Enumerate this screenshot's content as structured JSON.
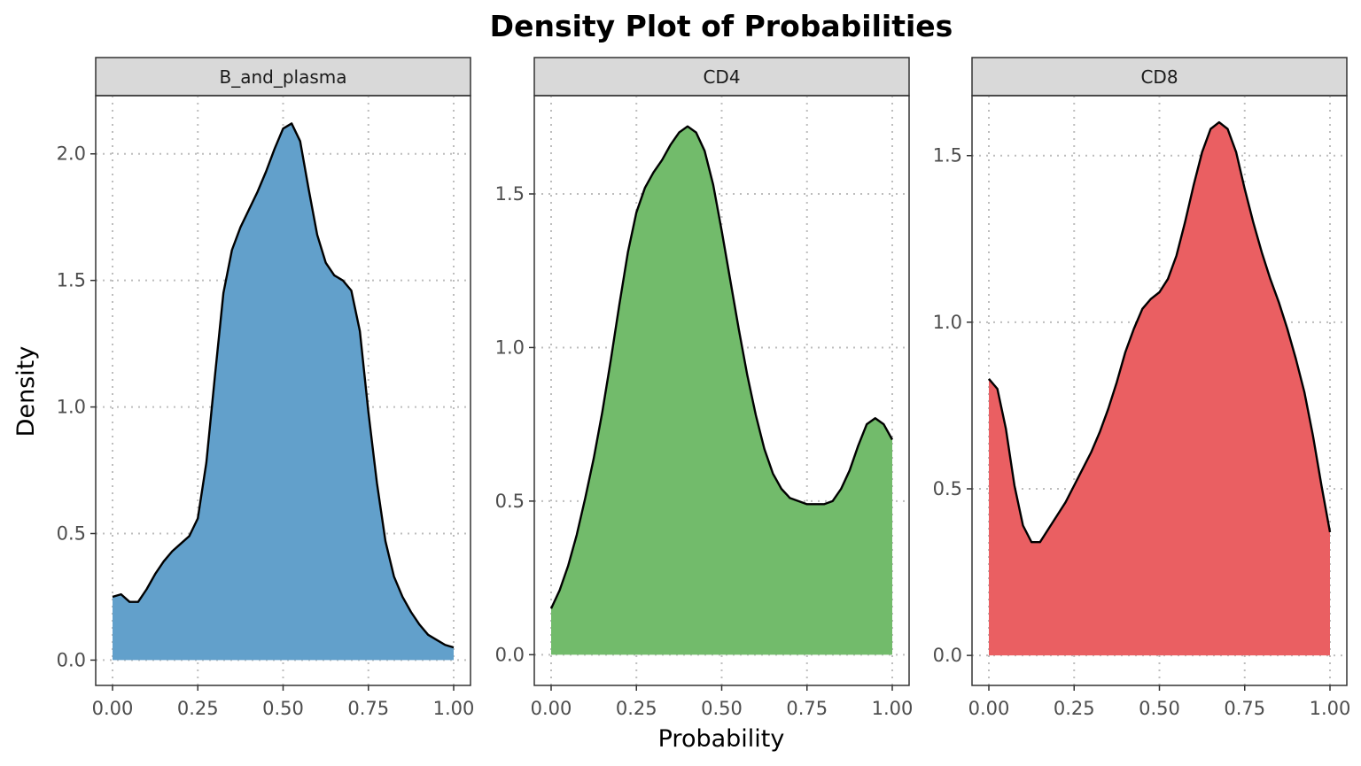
{
  "chart_data": {
    "type": "area",
    "title": "Density Plot of Probabilities",
    "xlabel": "Probability",
    "ylabel": "Density",
    "facets": [
      {
        "name": "B_and_plasma",
        "color": "#62a0cb",
        "xlim": [
          0,
          1
        ],
        "ylim": [
          -0.1,
          2.23
        ],
        "xticks": [
          "0.00",
          "0.25",
          "0.50",
          "0.75",
          "1.00"
        ],
        "yticks": [
          "0.0",
          "0.5",
          "1.0",
          "1.5",
          "2.0"
        ],
        "ytick_values": [
          0,
          0.5,
          1.0,
          1.5,
          2.0
        ],
        "x": [
          0,
          0.025,
          0.05,
          0.075,
          0.1,
          0.125,
          0.15,
          0.175,
          0.2,
          0.225,
          0.25,
          0.275,
          0.3,
          0.325,
          0.35,
          0.375,
          0.4,
          0.425,
          0.45,
          0.475,
          0.5,
          0.525,
          0.55,
          0.575,
          0.6,
          0.625,
          0.65,
          0.675,
          0.7,
          0.725,
          0.75,
          0.775,
          0.8,
          0.825,
          0.85,
          0.875,
          0.9,
          0.925,
          0.95,
          0.975,
          1.0
        ],
        "y": [
          0.25,
          0.26,
          0.23,
          0.23,
          0.28,
          0.34,
          0.39,
          0.43,
          0.46,
          0.49,
          0.56,
          0.78,
          1.12,
          1.45,
          1.62,
          1.71,
          1.78,
          1.85,
          1.93,
          2.02,
          2.1,
          2.12,
          2.05,
          1.86,
          1.68,
          1.57,
          1.52,
          1.5,
          1.46,
          1.3,
          0.98,
          0.7,
          0.47,
          0.33,
          0.25,
          0.19,
          0.14,
          0.1,
          0.08,
          0.06,
          0.05
        ]
      },
      {
        "name": "CD4",
        "color": "#72bb6b",
        "xlim": [
          0,
          1
        ],
        "ylim": [
          -0.1,
          1.82
        ],
        "xticks": [
          "0.00",
          "0.25",
          "0.50",
          "0.75",
          "1.00"
        ],
        "yticks": [
          "0.0",
          "0.5",
          "1.0",
          "1.5"
        ],
        "ytick_values": [
          0,
          0.5,
          1.0,
          1.5
        ],
        "x": [
          0,
          0.025,
          0.05,
          0.075,
          0.1,
          0.125,
          0.15,
          0.175,
          0.2,
          0.225,
          0.25,
          0.275,
          0.3,
          0.325,
          0.35,
          0.375,
          0.4,
          0.425,
          0.45,
          0.475,
          0.5,
          0.525,
          0.55,
          0.575,
          0.6,
          0.625,
          0.65,
          0.675,
          0.7,
          0.725,
          0.75,
          0.775,
          0.8,
          0.825,
          0.85,
          0.875,
          0.9,
          0.925,
          0.95,
          0.975,
          1.0
        ],
        "y": [
          0.15,
          0.21,
          0.29,
          0.39,
          0.51,
          0.64,
          0.79,
          0.96,
          1.14,
          1.31,
          1.44,
          1.52,
          1.57,
          1.61,
          1.66,
          1.7,
          1.72,
          1.7,
          1.64,
          1.53,
          1.38,
          1.22,
          1.06,
          0.91,
          0.78,
          0.67,
          0.59,
          0.54,
          0.51,
          0.5,
          0.49,
          0.49,
          0.49,
          0.5,
          0.54,
          0.6,
          0.68,
          0.75,
          0.77,
          0.75,
          0.7
        ]
      },
      {
        "name": "CD8",
        "color": "#ea5f62",
        "xlim": [
          0,
          1
        ],
        "ylim": [
          -0.09,
          1.68
        ],
        "xticks": [
          "0.00",
          "0.25",
          "0.50",
          "0.75",
          "1.00"
        ],
        "yticks": [
          "0.0",
          "0.5",
          "1.0",
          "1.5"
        ],
        "ytick_values": [
          0,
          0.5,
          1.0,
          1.5
        ],
        "x": [
          0,
          0.025,
          0.05,
          0.075,
          0.1,
          0.125,
          0.15,
          0.175,
          0.2,
          0.225,
          0.25,
          0.275,
          0.3,
          0.325,
          0.35,
          0.375,
          0.4,
          0.425,
          0.45,
          0.475,
          0.5,
          0.525,
          0.55,
          0.575,
          0.6,
          0.625,
          0.65,
          0.675,
          0.7,
          0.725,
          0.75,
          0.775,
          0.8,
          0.825,
          0.85,
          0.875,
          0.9,
          0.925,
          0.95,
          0.975,
          1.0
        ],
        "y": [
          0.83,
          0.8,
          0.68,
          0.51,
          0.39,
          0.34,
          0.34,
          0.38,
          0.42,
          0.46,
          0.51,
          0.56,
          0.61,
          0.67,
          0.74,
          0.82,
          0.91,
          0.98,
          1.04,
          1.07,
          1.09,
          1.13,
          1.2,
          1.3,
          1.41,
          1.51,
          1.58,
          1.6,
          1.58,
          1.51,
          1.4,
          1.3,
          1.21,
          1.13,
          1.06,
          0.98,
          0.89,
          0.79,
          0.66,
          0.51,
          0.37
        ]
      }
    ]
  }
}
